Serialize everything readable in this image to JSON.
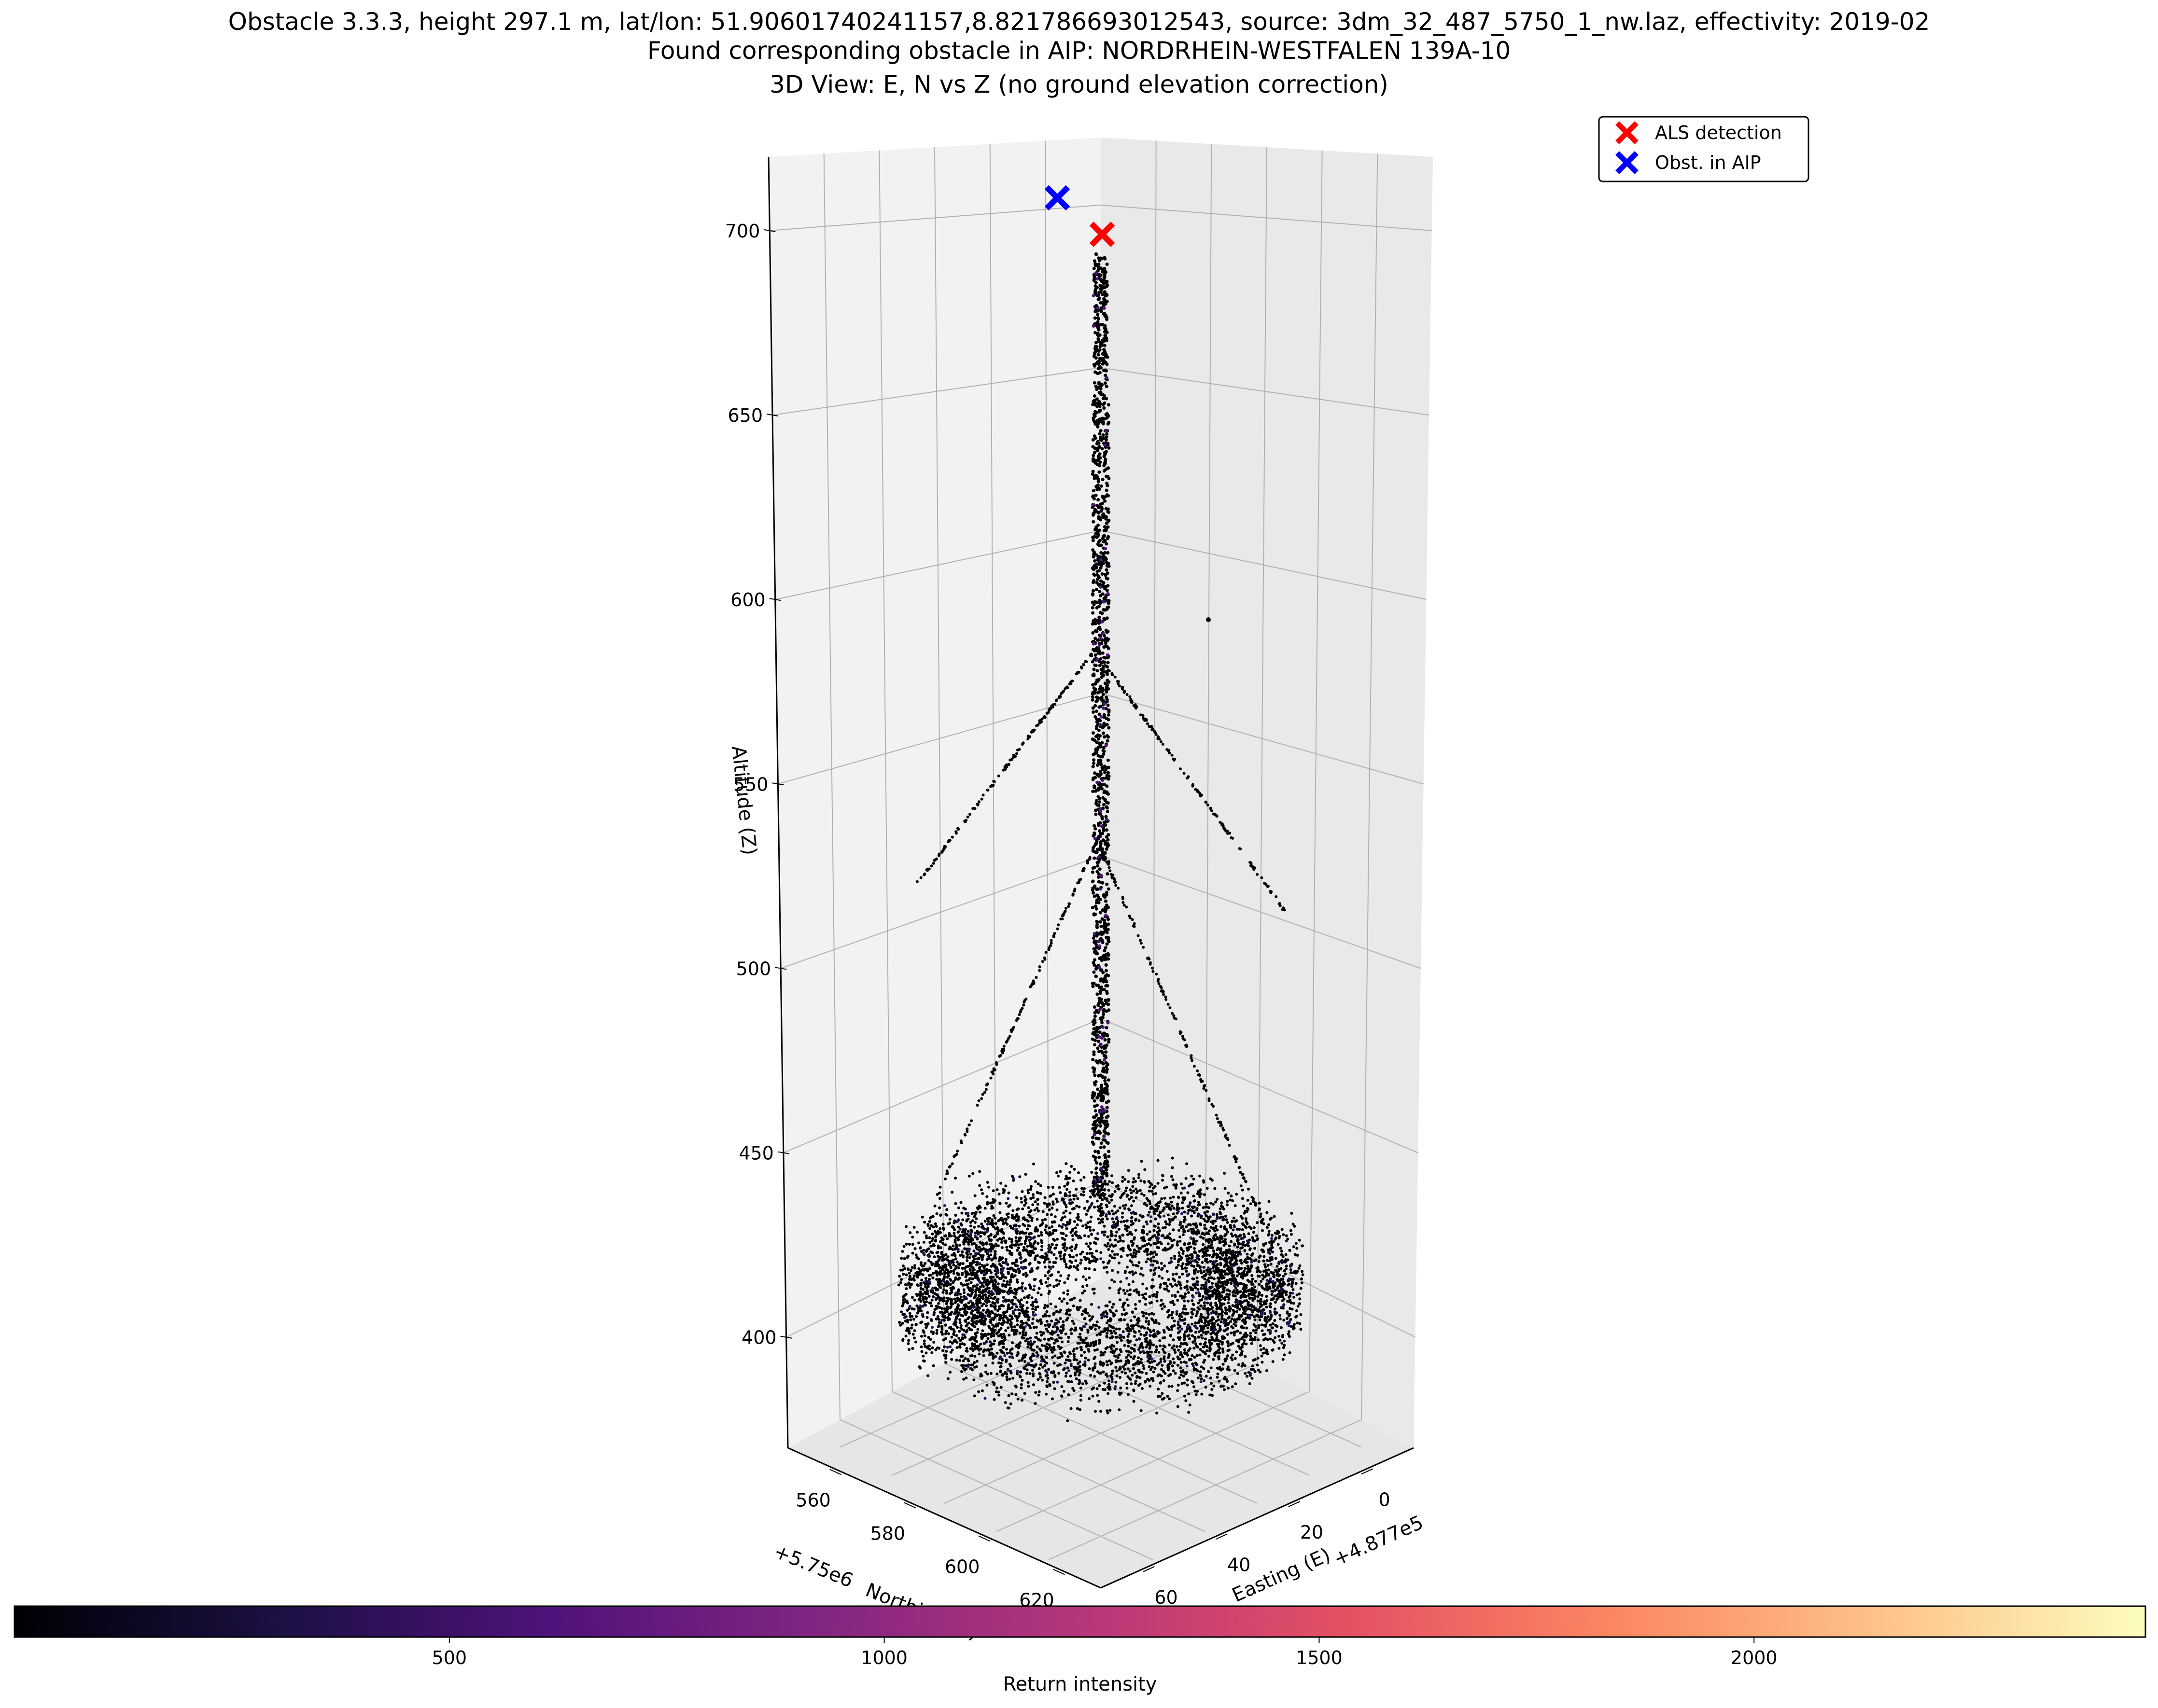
{
  "title": {
    "line1": "Obstacle 3.3.3, height 297.1 m, lat/lon: 51.90601740241157,8.821786693012543, source: 3dm_32_487_5750_1_nw.laz, effectivity: 2019-02",
    "line2": "Found corresponding obstacle in AIP: NORDRHEIN-WESTFALEN 139A-10",
    "line3": "3D View: E, N vs Z (no ground elevation correction)"
  },
  "legend": {
    "items": [
      {
        "label": "ALS detection",
        "color": "#ff0000",
        "marker": "x"
      },
      {
        "label": "Obst. in AIP",
        "color": "#0000ff",
        "marker": "x"
      }
    ]
  },
  "colorbar": {
    "label": "Return intensity",
    "ticks": [
      "500",
      "1000",
      "1500",
      "2000"
    ],
    "tick_values": [
      500,
      1000,
      1500,
      2000
    ],
    "range": [
      0,
      2450
    ],
    "colormap": "magma",
    "stops": [
      "#000004",
      "#1c1044",
      "#4f127b",
      "#812581",
      "#b5367a",
      "#e55064",
      "#fb8761",
      "#fec287",
      "#fcfdbf"
    ]
  },
  "chart_data": {
    "type": "scatter",
    "projection": "3d",
    "z_axis": {
      "label": "Altitude (Z)",
      "ticks": [
        "400",
        "450",
        "500",
        "550",
        "600",
        "650",
        "700"
      ],
      "range": [
        370,
        720
      ]
    },
    "north_axis": {
      "label": "Northing (N)",
      "offset_label": "+5.75e6",
      "ticks": [
        "560",
        "580",
        "600",
        "620"
      ]
    },
    "east_axis": {
      "label": "Easting (E)",
      "offset_label": "+4.877e5",
      "ticks": [
        "0",
        "20",
        "40",
        "60"
      ]
    },
    "points": [
      {
        "name": "ALS detection",
        "color": "#ff0000",
        "marker": "x",
        "z": 691
      },
      {
        "name": "Obst. in AIP",
        "color": "#0000ff",
        "marker": "x",
        "z": 700
      }
    ],
    "point_cloud": {
      "colored_by": "Return intensity",
      "mast_z_range": [
        395,
        685
      ],
      "vegetation_z_range": [
        375,
        430
      ],
      "guy_wires": [
        {
          "from_z": 570,
          "to_z": 530,
          "side": "left"
        },
        {
          "from_z": 565,
          "to_z": 520,
          "side": "right"
        },
        {
          "from_z": 510,
          "to_z": 440,
          "side": "left"
        },
        {
          "from_z": 505,
          "to_z": 445,
          "side": "right"
        }
      ]
    }
  }
}
